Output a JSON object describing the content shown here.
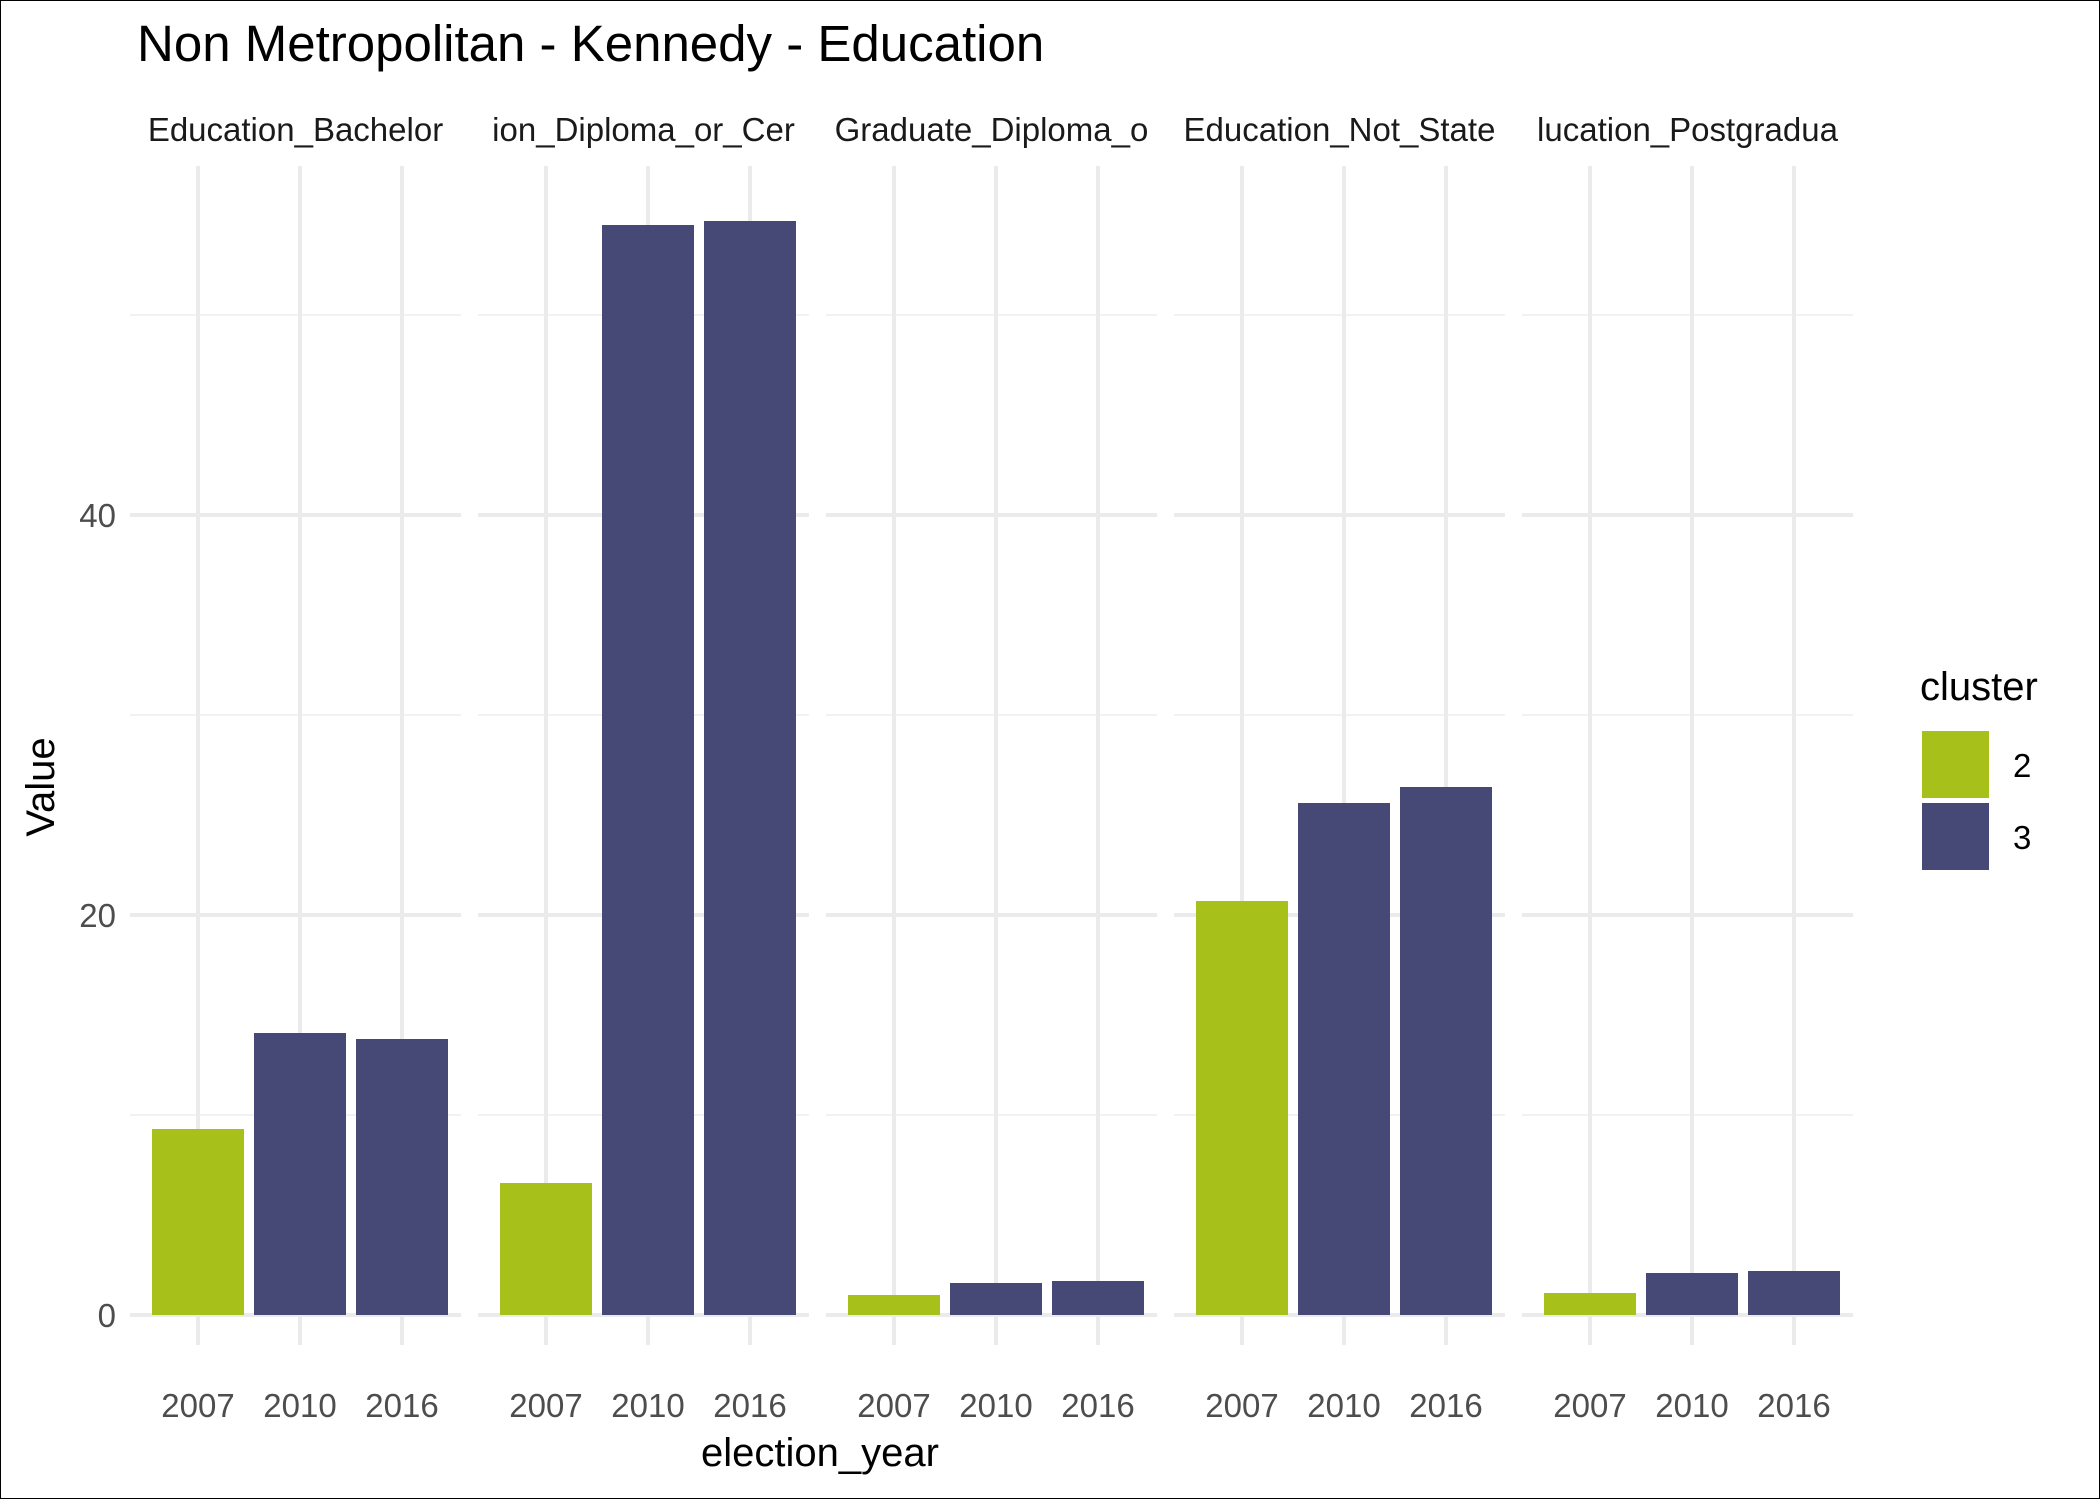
{
  "chart_data": {
    "type": "bar",
    "title": "Non Metropolitan - Kennedy - Education",
    "xlabel": "election_year",
    "ylabel": "Value",
    "ylim": [
      0,
      55
    ],
    "y_ticks": [
      0,
      20,
      40
    ],
    "grid": true,
    "legend": {
      "title": "cluster",
      "placement": "right",
      "entries": [
        {
          "label": "2",
          "color": "#A8C11A"
        },
        {
          "label": "3",
          "color": "#464876"
        }
      ]
    },
    "categories": [
      "2007",
      "2010",
      "2016"
    ],
    "category_clusters": [
      "2",
      "3",
      "3"
    ],
    "facets": [
      {
        "label": "Education_Bachelor",
        "values": [
          9.3,
          14.1,
          13.8
        ]
      },
      {
        "label": "ion_Diploma_or_Cer",
        "values": [
          6.6,
          54.5,
          54.7
        ]
      },
      {
        "label": "Graduate_Diploma_o",
        "values": [
          1.0,
          1.6,
          1.7
        ]
      },
      {
        "label": "Education_Not_State",
        "values": [
          20.7,
          25.6,
          26.4
        ]
      },
      {
        "label": "lucation_Postgradua",
        "values": [
          1.1,
          2.1,
          2.2
        ]
      }
    ]
  }
}
